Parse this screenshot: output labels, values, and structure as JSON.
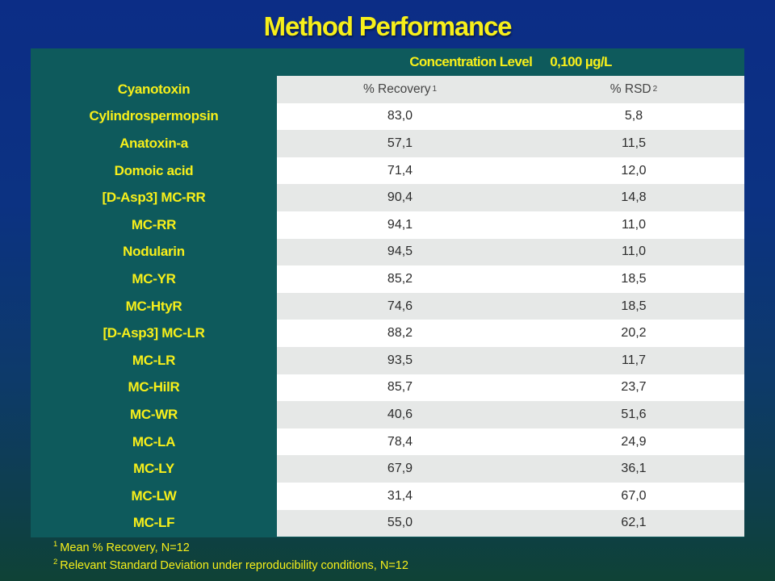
{
  "title": "Method Performance",
  "concentration": {
    "label": "Concentration Level",
    "value": "0,100 µg/L"
  },
  "header": {
    "analyte": "Cyanotoxin",
    "recovery": "% Recovery",
    "recovery_ref": "1",
    "rsd": "% RSD",
    "rsd_ref": "2"
  },
  "rows": [
    {
      "name": "Cylindrospermopsin",
      "recovery": "83,0",
      "rsd": "5,8"
    },
    {
      "name": "Anatoxin-a",
      "recovery": "57,1",
      "rsd": "11,5"
    },
    {
      "name": "Domoic acid",
      "recovery": "71,4",
      "rsd": "12,0"
    },
    {
      "name": "[D-Asp3] MC-RR",
      "recovery": "90,4",
      "rsd": "14,8"
    },
    {
      "name": "MC-RR",
      "recovery": "94,1",
      "rsd": "11,0"
    },
    {
      "name": "Nodularin",
      "recovery": "94,5",
      "rsd": "11,0"
    },
    {
      "name": "MC-YR",
      "recovery": "85,2",
      "rsd": "18,5"
    },
    {
      "name": "MC-HtyR",
      "recovery": "74,6",
      "rsd": "18,5"
    },
    {
      "name": "[D-Asp3] MC-LR",
      "recovery": "88,2",
      "rsd": "20,2"
    },
    {
      "name": "MC-LR",
      "recovery": "93,5",
      "rsd": "11,7"
    },
    {
      "name": "MC-HilR",
      "recovery": "85,7",
      "rsd": "23,7"
    },
    {
      "name": "MC-WR",
      "recovery": "40,6",
      "rsd": "51,6"
    },
    {
      "name": "MC-LA",
      "recovery": "78,4",
      "rsd": "24,9"
    },
    {
      "name": "MC-LY",
      "recovery": "67,9",
      "rsd": "36,1"
    },
    {
      "name": "MC-LW",
      "recovery": "31,4",
      "rsd": "67,0"
    },
    {
      "name": "MC-LF",
      "recovery": "55,0",
      "rsd": "62,1"
    }
  ],
  "footnotes": [
    {
      "ref": "1",
      "text": "Mean % Recovery, N=12"
    },
    {
      "ref": "2",
      "text": "Relevant Standard Deviation under reproducibility  conditions, N=12"
    }
  ],
  "colors": {
    "title": "#f7ef1a",
    "panel": "#0e5a5c",
    "stripe": "#e6e8e7",
    "background_top": "#0c2d86",
    "background_bottom": "#0f4236"
  }
}
